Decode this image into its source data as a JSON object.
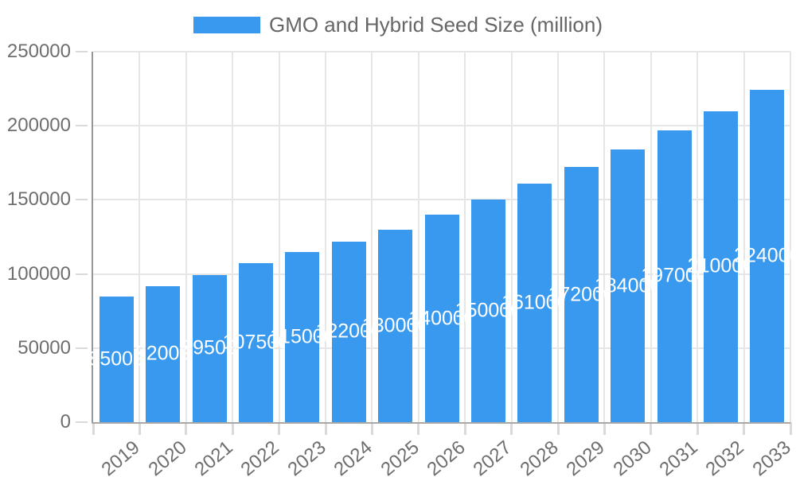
{
  "legend": {
    "label": "GMO and Hybrid Seed Size (million)"
  },
  "colors": {
    "bar": "#3899EE",
    "grid": "#e6e6e6",
    "tick": "#d9d9d9",
    "axis_y": "#969696",
    "axis_x": "#a8a8a8",
    "text": "#6e6e6e",
    "legend_text": "#666666",
    "value_label": "#ffffff",
    "background": "#ffffff"
  },
  "chart_data": {
    "type": "bar",
    "title": "",
    "legend": "GMO and Hybrid Seed Size (million)",
    "legend_position": "top",
    "categories": [
      "2019",
      "2020",
      "2021",
      "2022",
      "2023",
      "2024",
      "2025",
      "2026",
      "2027",
      "2028",
      "2029",
      "2030",
      "2031",
      "2032",
      "2033"
    ],
    "values": [
      85000,
      92000,
      99500,
      107500,
      115000,
      122000,
      130000,
      140000,
      150000,
      161000,
      172000,
      184000,
      197000,
      210000,
      224000
    ],
    "xlabel": "",
    "ylabel": "",
    "ylim": [
      0,
      250000
    ],
    "yticks": [
      0,
      50000,
      100000,
      150000,
      200000,
      250000
    ],
    "grid": true,
    "bar_labels": true,
    "bar_label_position": "middle",
    "x_label_rotation": -40
  }
}
